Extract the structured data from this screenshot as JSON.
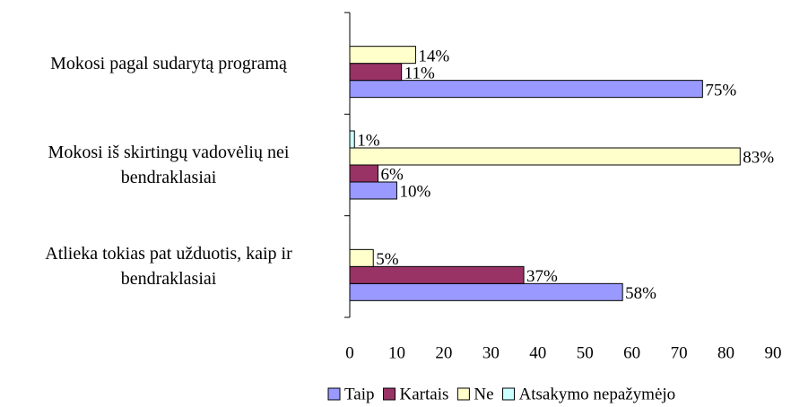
{
  "chart_data": {
    "type": "barh",
    "categories": [
      "Mokosi pagal sudarytą programą",
      "Mokosi iš skirtingų vadovėlių nei bendraklasiai",
      "Atlieka tokias pat užduotis, kaip ir bendraklasiai"
    ],
    "series": [
      {
        "name": "Taip",
        "color": "#9999ff",
        "values": [
          75,
          10,
          58
        ],
        "value_labels": [
          "75%",
          "10%",
          "58%"
        ]
      },
      {
        "name": "Kartais",
        "color": "#993366",
        "values": [
          11,
          6,
          37
        ],
        "value_labels": [
          "11%",
          "6%",
          "37%"
        ]
      },
      {
        "name": "Ne",
        "color": "#ffffcc",
        "values": [
          14,
          83,
          5
        ],
        "value_labels": [
          "14%",
          "83%",
          "5%"
        ]
      },
      {
        "name": "Atsakymo nepažymėjo",
        "color": "#ccffff",
        "values": [
          null,
          1,
          null
        ],
        "value_labels": [
          null,
          "1%",
          null
        ]
      }
    ],
    "xlim": [
      0,
      90
    ],
    "xticks": [
      0,
      10,
      20,
      30,
      40,
      50,
      60,
      70,
      80,
      90
    ],
    "legend": "bottom"
  }
}
